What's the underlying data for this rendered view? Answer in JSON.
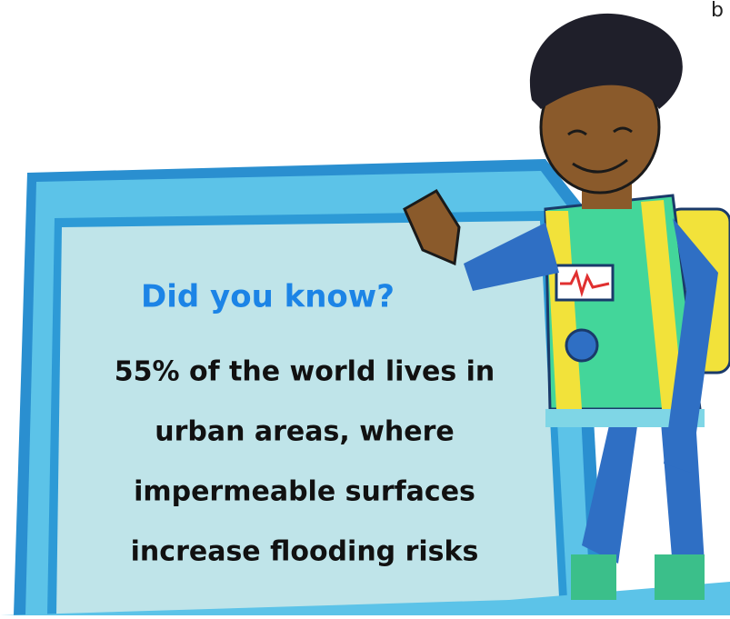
{
  "page": {
    "corner_text": "b",
    "heading": "Did you know?",
    "body_lines": [
      "55% of the world lives in",
      "urban areas, where",
      "impermeable surfaces",
      "increase flooding risks"
    ]
  }
}
